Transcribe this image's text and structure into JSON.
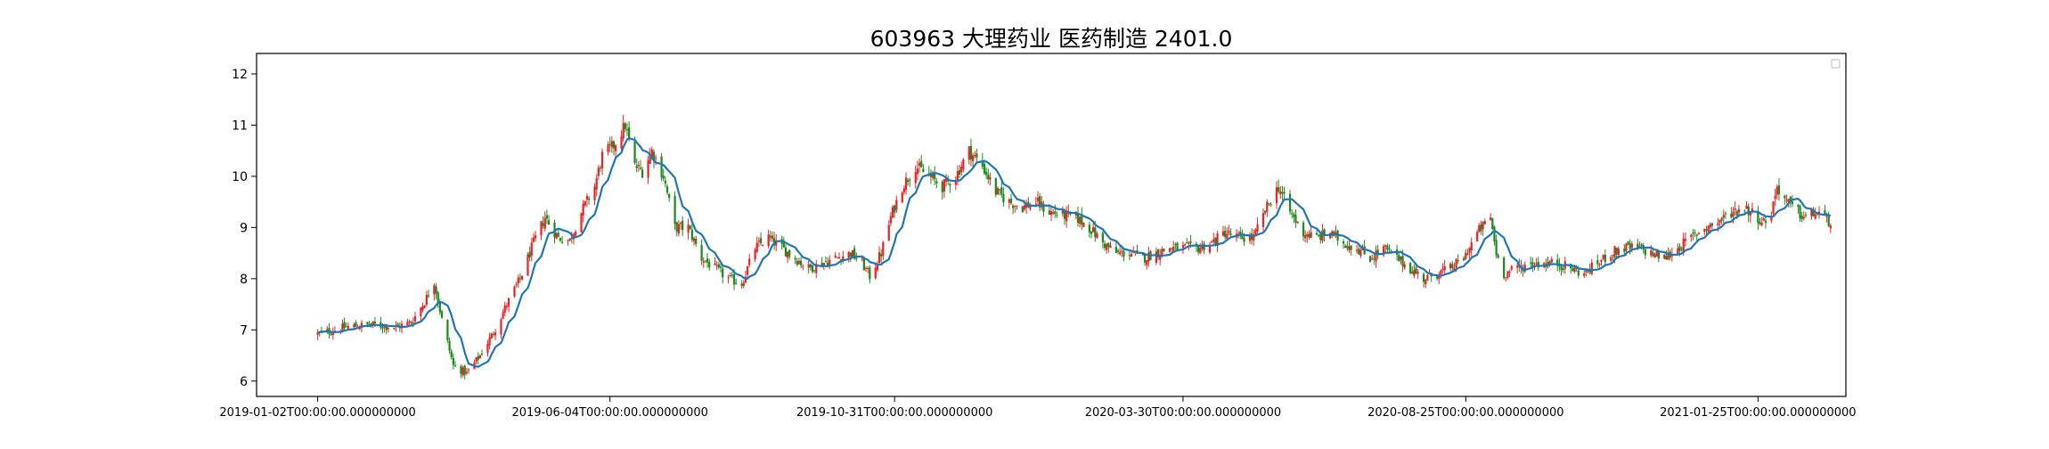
{
  "chart_data": {
    "type": "candlestick",
    "title": "603963 大理药业 医药制造 2401.0",
    "xlabel": "",
    "ylabel": "",
    "ylim": [
      5.7,
      12.4
    ],
    "y_ticks": [
      6,
      7,
      8,
      9,
      10,
      11,
      12
    ],
    "x_range": [
      "2018-12-01",
      "2021-03-12"
    ],
    "x_ticks": [
      {
        "date": "2019-01-02",
        "label": "2019-01-02T00:00:00.000000000"
      },
      {
        "date": "2019-06-04",
        "label": "2019-06-04T00:00:00.000000000"
      },
      {
        "date": "2019-10-31",
        "label": "2019-10-31T00:00:00.000000000"
      },
      {
        "date": "2020-03-30",
        "label": "2020-03-30T00:00:00.000000000"
      },
      {
        "date": "2020-08-25",
        "label": "2020-08-25T00:00:00.000000000"
      },
      {
        "date": "2021-01-25",
        "label": "2021-01-25T00:00:00.000000000"
      }
    ],
    "legend": {
      "placement": "top-right",
      "entries": []
    },
    "grid": false,
    "colors": {
      "up": "#e8262a",
      "down": "#1f8c1f",
      "ma": "#1f77b4"
    },
    "series": [
      {
        "type": "close_anchors",
        "points": [
          [
            "2019-01-02",
            6.92
          ],
          [
            "2019-01-09",
            6.98
          ],
          [
            "2019-01-16",
            7.05
          ],
          [
            "2019-01-23",
            7.08
          ],
          [
            "2019-02-01",
            7.1
          ],
          [
            "2019-02-12",
            7.05
          ],
          [
            "2019-02-20",
            7.15
          ],
          [
            "2019-02-27",
            7.55
          ],
          [
            "2019-03-04",
            7.95
          ],
          [
            "2019-03-08",
            7.2
          ],
          [
            "2019-03-14",
            6.3
          ],
          [
            "2019-03-21",
            6.15
          ],
          [
            "2019-03-28",
            6.5
          ],
          [
            "2019-04-04",
            6.95
          ],
          [
            "2019-04-11",
            7.5
          ],
          [
            "2019-04-18",
            8.0
          ],
          [
            "2019-04-25",
            8.7
          ],
          [
            "2019-05-01",
            9.2
          ],
          [
            "2019-05-08",
            8.8
          ],
          [
            "2019-05-14",
            8.75
          ],
          [
            "2019-05-20",
            9.3
          ],
          [
            "2019-05-27",
            9.8
          ],
          [
            "2019-05-31",
            10.4
          ],
          [
            "2019-06-06",
            10.6
          ],
          [
            "2019-06-12",
            11.0
          ],
          [
            "2019-06-17",
            10.2
          ],
          [
            "2019-06-21",
            10.1
          ],
          [
            "2019-06-26",
            10.5
          ],
          [
            "2019-07-02",
            10.0
          ],
          [
            "2019-07-08",
            9.0
          ],
          [
            "2019-07-15",
            9.0
          ],
          [
            "2019-07-22",
            8.4
          ],
          [
            "2019-07-29",
            8.2
          ],
          [
            "2019-08-05",
            8.0
          ],
          [
            "2019-08-12",
            7.9
          ],
          [
            "2019-08-19",
            8.6
          ],
          [
            "2019-08-26",
            8.8
          ],
          [
            "2019-09-02",
            8.6
          ],
          [
            "2019-09-09",
            8.4
          ],
          [
            "2019-09-16",
            8.2
          ],
          [
            "2019-09-23",
            8.3
          ],
          [
            "2019-09-30",
            8.4
          ],
          [
            "2019-10-08",
            8.5
          ],
          [
            "2019-10-14",
            8.3
          ],
          [
            "2019-10-18",
            8.05
          ],
          [
            "2019-10-24",
            8.5
          ],
          [
            "2019-10-29",
            9.2
          ],
          [
            "2019-11-04",
            9.8
          ],
          [
            "2019-11-11",
            10.2
          ],
          [
            "2019-11-18",
            10.0
          ],
          [
            "2019-11-25",
            9.8
          ],
          [
            "2019-12-02",
            10.0
          ],
          [
            "2019-12-09",
            10.5
          ],
          [
            "2019-12-16",
            10.2
          ],
          [
            "2019-12-23",
            9.7
          ],
          [
            "2019-12-30",
            9.5
          ],
          [
            "2020-01-06",
            9.4
          ],
          [
            "2020-01-13",
            9.5
          ],
          [
            "2020-01-20",
            9.3
          ],
          [
            "2020-02-03",
            9.2
          ],
          [
            "2020-02-10",
            9.0
          ],
          [
            "2020-02-17",
            8.7
          ],
          [
            "2020-02-24",
            8.5
          ],
          [
            "2020-03-02",
            8.5
          ],
          [
            "2020-03-09",
            8.4
          ],
          [
            "2020-03-16",
            8.5
          ],
          [
            "2020-03-23",
            8.6
          ],
          [
            "2020-03-30",
            8.6
          ],
          [
            "2020-04-07",
            8.6
          ],
          [
            "2020-04-14",
            8.7
          ],
          [
            "2020-04-21",
            8.9
          ],
          [
            "2020-04-28",
            8.8
          ],
          [
            "2020-05-06",
            8.8
          ],
          [
            "2020-05-13",
            9.4
          ],
          [
            "2020-05-19",
            9.8
          ],
          [
            "2020-05-25",
            9.3
          ],
          [
            "2020-06-01",
            8.9
          ],
          [
            "2020-06-08",
            8.8
          ],
          [
            "2020-06-15",
            8.9
          ],
          [
            "2020-06-22",
            8.7
          ],
          [
            "2020-06-29",
            8.6
          ],
          [
            "2020-07-06",
            8.4
          ],
          [
            "2020-07-13",
            8.6
          ],
          [
            "2020-07-20",
            8.4
          ],
          [
            "2020-07-27",
            8.2
          ],
          [
            "2020-08-03",
            8.0
          ],
          [
            "2020-08-10",
            8.1
          ],
          [
            "2020-08-17",
            8.2
          ],
          [
            "2020-08-24",
            8.4
          ],
          [
            "2020-08-31",
            8.9
          ],
          [
            "2020-09-07",
            9.2
          ],
          [
            "2020-09-10",
            8.5
          ],
          [
            "2020-09-14",
            8.1
          ],
          [
            "2020-09-21",
            8.2
          ],
          [
            "2020-09-28",
            8.3
          ],
          [
            "2020-10-12",
            8.3
          ],
          [
            "2020-10-19",
            8.2
          ],
          [
            "2020-10-26",
            8.1
          ],
          [
            "2020-11-02",
            8.3
          ],
          [
            "2020-11-09",
            8.5
          ],
          [
            "2020-11-16",
            8.6
          ],
          [
            "2020-11-23",
            8.6
          ],
          [
            "2020-11-30",
            8.5
          ],
          [
            "2020-12-07",
            8.4
          ],
          [
            "2020-12-14",
            8.6
          ],
          [
            "2020-12-21",
            8.8
          ],
          [
            "2020-12-28",
            9.0
          ],
          [
            "2021-01-04",
            9.1
          ],
          [
            "2021-01-11",
            9.3
          ],
          [
            "2021-01-18",
            9.4
          ],
          [
            "2021-01-25",
            9.2
          ],
          [
            "2021-01-28",
            9.1
          ],
          [
            "2021-02-01",
            9.3
          ],
          [
            "2021-02-04",
            9.8
          ],
          [
            "2021-02-09",
            9.5
          ],
          [
            "2021-02-18",
            9.2
          ],
          [
            "2021-02-25",
            9.3
          ],
          [
            "2021-03-04",
            9.1
          ]
        ]
      }
    ]
  }
}
